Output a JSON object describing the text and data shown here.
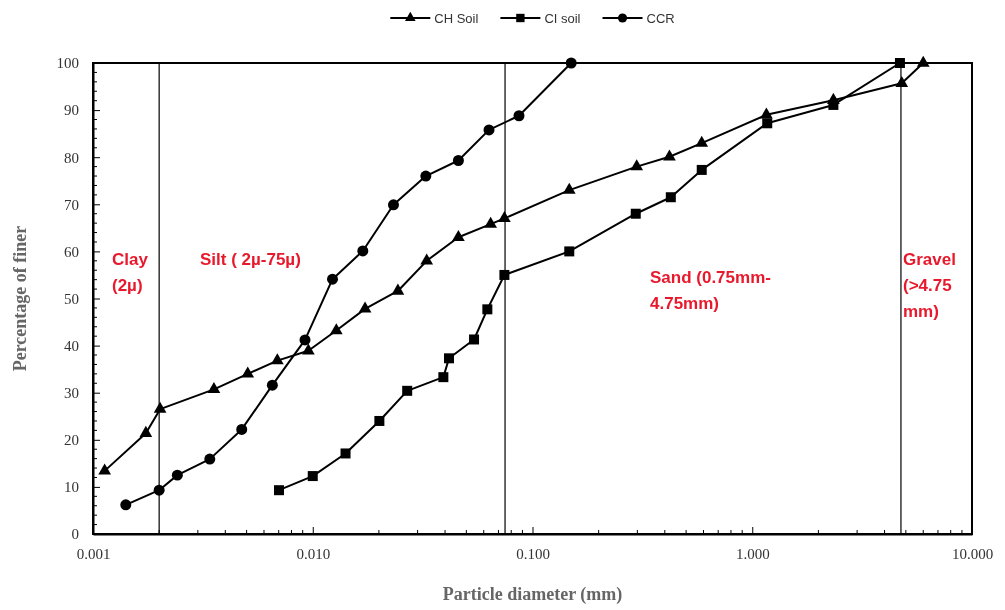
{
  "chart_data": {
    "type": "line",
    "xlabel": "Particle diameter (mm)",
    "ylabel": "Percentage of finer",
    "log": "x",
    "xlim": [
      0.001,
      10
    ],
    "ylim": [
      0,
      100
    ],
    "xticks": [
      {
        "value": 0.001,
        "label": "0.001"
      },
      {
        "value": 0.01,
        "label": "0.010"
      },
      {
        "value": 0.1,
        "label": "0.100"
      },
      {
        "value": 1,
        "label": "1.000"
      },
      {
        "value": 10,
        "label": "10.000"
      }
    ],
    "yticks": [
      0,
      10,
      20,
      30,
      40,
      50,
      60,
      70,
      80,
      90,
      100
    ],
    "grid": false,
    "legend": "top",
    "line_style": "solid",
    "series": [
      {
        "name": "CH Soil",
        "color": "#000000",
        "marker": "triangle",
        "x": [
          0.00113,
          0.00174,
          0.00202,
          0.00355,
          0.00506,
          0.0069,
          0.00955,
          0.0128,
          0.0173,
          0.0244,
          0.033,
          0.046,
          0.0645,
          0.0745,
          0.147,
          0.298,
          0.42,
          0.589,
          1.16,
          2.34,
          4.79,
          6.0
        ],
        "values": [
          13.4,
          21.4,
          26.5,
          30.7,
          34,
          36.8,
          38.9,
          43.2,
          47.8,
          51.6,
          58,
          63,
          65.8,
          67,
          73,
          78,
          80.1,
          83,
          89,
          92.1,
          95.7,
          100
        ]
      },
      {
        "name": "CI soil",
        "color": "#000000",
        "marker": "square",
        "x": [
          0.00702,
          0.01,
          0.0141,
          0.0201,
          0.0269,
          0.0393,
          0.0417,
          0.0542,
          0.0623,
          0.0745,
          0.147,
          0.295,
          0.426,
          0.589,
          1.17,
          2.34,
          4.7
        ],
        "values": [
          9.3,
          12.3,
          17.1,
          24,
          30.4,
          33.3,
          37.3,
          41.3,
          47.7,
          55,
          60,
          68,
          71.5,
          77.3,
          87.2,
          91.1,
          100
        ]
      },
      {
        "name": "CCR",
        "color": "#000000",
        "marker": "circle",
        "x": [
          0.00141,
          0.002,
          0.00242,
          0.0034,
          0.00475,
          0.00655,
          0.00922,
          0.0123,
          0.0169,
          0.0233,
          0.0327,
          0.046,
          0.0634,
          0.0868,
          0.15
        ],
        "values": [
          6.2,
          9.3,
          12.5,
          15.9,
          22.2,
          31.6,
          41.2,
          54.1,
          60.1,
          69.9,
          76,
          79.3,
          85.8,
          88.8,
          100
        ]
      }
    ],
    "ref_lines": [
      {
        "axis": "x",
        "value": 0.002,
        "color": "#000000"
      },
      {
        "axis": "x",
        "value": 0.075,
        "color": "#000000"
      },
      {
        "axis": "x",
        "value": 4.75,
        "color": "#000000"
      }
    ],
    "annotations": [
      "Clay\n(2µ)",
      "Silt ( 2µ-75µ)",
      "Sand (0.75mm-\n4.75mm)",
      "Gravel\n(>4.75\nmm)"
    ]
  }
}
